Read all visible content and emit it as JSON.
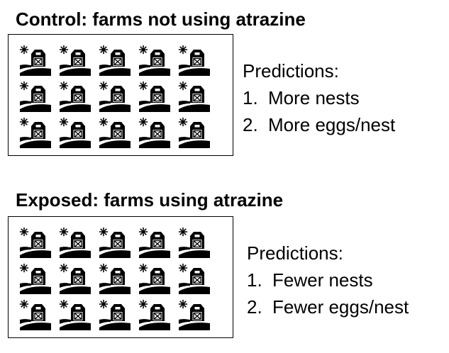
{
  "icon_name": "farm-icon",
  "groups": [
    {
      "title": "Control: farms not using atrazine",
      "farm_icon_count": 15,
      "predictions": {
        "heading": "Predictions:",
        "items": [
          {
            "number": "1.",
            "text": "More nests"
          },
          {
            "number": "2.",
            "text": "More eggs/nest"
          }
        ]
      }
    },
    {
      "title": "Exposed: farms using atrazine",
      "farm_icon_count": 15,
      "predictions": {
        "heading": "Predictions:",
        "items": [
          {
            "number": "1.",
            "text": "Fewer nests"
          },
          {
            "number": "2.",
            "text": "Fewer eggs/nest"
          }
        ]
      }
    }
  ]
}
